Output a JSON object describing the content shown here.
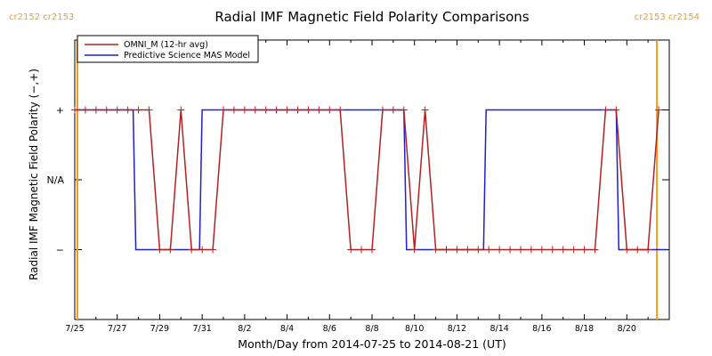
{
  "chart_data": {
    "type": "line",
    "title": "Radial IMF Magnetic Field Polarity Comparisons",
    "xlabel": "Month/Day from 2014-07-25 to 2014-08-21 (UT)",
    "ylabel": "Radial IMF Magnetic Field Polarity (−,+)",
    "x_ticks": [
      "7/25",
      "7/27",
      "7/29",
      "7/31",
      "8/2",
      "8/4",
      "8/6",
      "8/8",
      "8/10",
      "8/12",
      "8/14",
      "8/16",
      "8/18",
      "8/20"
    ],
    "y_ticks": [
      "+",
      "N/A",
      "−"
    ],
    "y_tick_values": [
      1,
      0,
      -1
    ],
    "xlim": [
      "2014-07-25",
      "2014-08-22"
    ],
    "ylim": [
      -2,
      2
    ],
    "grid": false,
    "legend_position": "top-left",
    "carrington_markers": [
      {
        "label": "cr2152 cr2153",
        "date": "2014-07-25T03:00",
        "side": "left"
      },
      {
        "label": "cr2153 cr2154",
        "date": "2014-08-21T10:00",
        "side": "right"
      }
    ],
    "series": [
      {
        "name": "OMNI_M (12-hr avg)",
        "color": "#b22222",
        "markers": true,
        "x": [
          "2014-07-25T00:00",
          "2014-07-25T12:00",
          "2014-07-26T00:00",
          "2014-07-26T12:00",
          "2014-07-27T00:00",
          "2014-07-27T12:00",
          "2014-07-28T00:00",
          "2014-07-28T12:00",
          "2014-07-29T00:00",
          "2014-07-29T12:00",
          "2014-07-30T00:00",
          "2014-07-30T12:00",
          "2014-07-31T00:00",
          "2014-07-31T12:00",
          "2014-08-01T00:00",
          "2014-08-01T12:00",
          "2014-08-02T00:00",
          "2014-08-02T12:00",
          "2014-08-03T00:00",
          "2014-08-03T12:00",
          "2014-08-04T00:00",
          "2014-08-04T12:00",
          "2014-08-05T00:00",
          "2014-08-05T12:00",
          "2014-08-06T00:00",
          "2014-08-06T12:00",
          "2014-08-07T00:00",
          "2014-08-07T12:00",
          "2014-08-08T00:00",
          "2014-08-08T12:00",
          "2014-08-09T00:00",
          "2014-08-09T12:00",
          "2014-08-10T00:00",
          "2014-08-10T12:00",
          "2014-08-11T00:00",
          "2014-08-11T12:00",
          "2014-08-12T00:00",
          "2014-08-12T12:00",
          "2014-08-13T00:00",
          "2014-08-13T12:00",
          "2014-08-14T00:00",
          "2014-08-14T12:00",
          "2014-08-15T00:00",
          "2014-08-15T12:00",
          "2014-08-16T00:00",
          "2014-08-16T12:00",
          "2014-08-17T00:00",
          "2014-08-17T12:00",
          "2014-08-18T00:00",
          "2014-08-18T12:00",
          "2014-08-19T00:00",
          "2014-08-19T12:00",
          "2014-08-20T00:00",
          "2014-08-20T12:00",
          "2014-08-21T00:00",
          "2014-08-21T12:00"
        ],
        "y": [
          1,
          1,
          1,
          1,
          1,
          1,
          1,
          1,
          -1,
          -1,
          1,
          -1,
          -1,
          -1,
          1,
          1,
          1,
          1,
          1,
          1,
          1,
          1,
          1,
          1,
          1,
          1,
          -1,
          -1,
          -1,
          1,
          1,
          1,
          -1,
          1,
          -1,
          -1,
          -1,
          -1,
          -1,
          -1,
          -1,
          -1,
          -1,
          -1,
          -1,
          -1,
          -1,
          -1,
          -1,
          -1,
          1,
          1,
          -1,
          -1,
          -1,
          1
        ]
      },
      {
        "name": "Predictive Science MAS Model",
        "color": "#1f1fcf",
        "markers": false,
        "x": [
          "2014-07-25T00:00",
          "2014-07-27T18:00",
          "2014-07-27T21:00",
          "2014-07-30T21:00",
          "2014-07-31T00:00",
          "2014-08-09T12:00",
          "2014-08-09T15:00",
          "2014-08-13T06:00",
          "2014-08-13T09:00",
          "2014-08-19T12:00",
          "2014-08-19T15:00",
          "2014-08-21T22:00"
        ],
        "y": [
          1,
          1,
          -1,
          -1,
          1,
          1,
          -1,
          -1,
          1,
          1,
          -1,
          -1
        ]
      }
    ]
  }
}
